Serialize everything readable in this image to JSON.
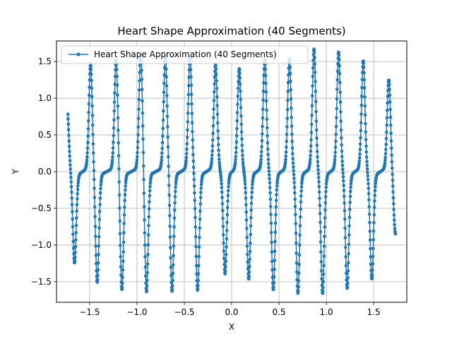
{
  "chart_data": {
    "type": "line",
    "title": "Heart Shape Approximation (40 Segments)",
    "xlabel": "X",
    "ylabel": "Y",
    "xlim": [
      -1.85,
      1.85
    ],
    "ylim": [
      -1.78,
      1.78
    ],
    "grid": true,
    "legend_position": "top-left",
    "series": [
      {
        "name": "Heart Shape Approximation (40 Segments)",
        "color": "#1f77b4",
        "marker": "circle",
        "x_range": [
          -1.73,
          1.73
        ],
        "samples": 1400,
        "segments": 40,
        "spike_peaks": [
          {
            "x": -1.74,
            "y": 0.88
          },
          {
            "x": -1.66,
            "y": -1.21
          },
          {
            "x": -1.49,
            "y": 1.42
          },
          {
            "x": -1.42,
            "y": -1.48
          },
          {
            "x": -1.22,
            "y": 1.5
          },
          {
            "x": -1.16,
            "y": -1.59
          },
          {
            "x": -0.96,
            "y": 1.58
          },
          {
            "x": -0.9,
            "y": -1.62
          },
          {
            "x": -0.7,
            "y": 1.55
          },
          {
            "x": -0.63,
            "y": -1.6
          },
          {
            "x": -0.44,
            "y": 1.52
          },
          {
            "x": -0.36,
            "y": -1.58
          },
          {
            "x": -0.17,
            "y": 1.42
          },
          {
            "x": -0.07,
            "y": -1.35
          },
          {
            "x": 0.08,
            "y": 1.36
          },
          {
            "x": 0.18,
            "y": -1.42
          },
          {
            "x": 0.35,
            "y": 1.48
          },
          {
            "x": 0.44,
            "y": -1.57
          },
          {
            "x": 0.61,
            "y": 1.5
          },
          {
            "x": 0.7,
            "y": -1.62
          },
          {
            "x": 0.87,
            "y": 1.63
          },
          {
            "x": 0.96,
            "y": -1.62
          },
          {
            "x": 1.13,
            "y": 1.59
          },
          {
            "x": 1.22,
            "y": -1.55
          },
          {
            "x": 1.39,
            "y": 1.47
          },
          {
            "x": 1.48,
            "y": -1.42
          },
          {
            "x": 1.66,
            "y": 1.22
          },
          {
            "x": 1.73,
            "y": -0.82
          }
        ]
      }
    ],
    "xticks": [
      {
        "value": -1.5,
        "label": "−1.5"
      },
      {
        "value": -1.0,
        "label": "−1.0"
      },
      {
        "value": -0.5,
        "label": "−0.5"
      },
      {
        "value": 0.0,
        "label": "0.0"
      },
      {
        "value": 0.5,
        "label": "0.5"
      },
      {
        "value": 1.0,
        "label": "1.0"
      },
      {
        "value": 1.5,
        "label": "1.5"
      }
    ],
    "yticks": [
      {
        "value": -1.5,
        "label": "−1.5"
      },
      {
        "value": -1.0,
        "label": "−1.0"
      },
      {
        "value": -0.5,
        "label": "−0.5"
      },
      {
        "value": 0.0,
        "label": "0.0"
      },
      {
        "value": 0.5,
        "label": "0.5"
      },
      {
        "value": 1.0,
        "label": "1.0"
      },
      {
        "value": 1.5,
        "label": "1.5"
      }
    ]
  }
}
